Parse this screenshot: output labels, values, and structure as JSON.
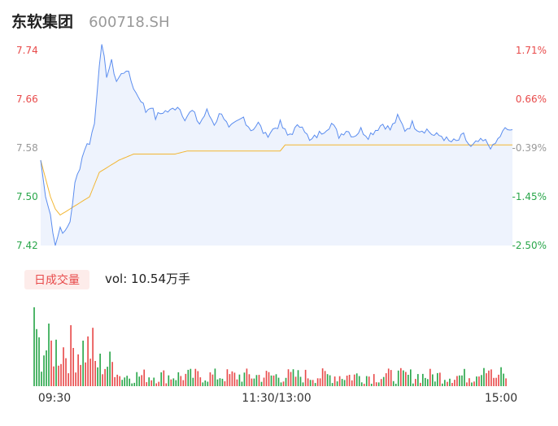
{
  "header": {
    "name": "东软集团",
    "code": "600718.SH"
  },
  "volume_panel": {
    "badge": "日成交量",
    "label": "vol: 10.54万手"
  },
  "colors": {
    "price_line": "#5b8def",
    "avg_line": "#f2b632",
    "up": "#e84a4a",
    "down": "#29a64a",
    "area": "#eef3fd"
  },
  "chart_data": {
    "type": "line",
    "price_axis": {
      "labels": [
        "7.74",
        "7.66",
        "7.58",
        "7.50",
        "7.42"
      ],
      "min": 7.42,
      "max": 7.74
    },
    "pct_axis": {
      "labels": [
        "1.71%",
        "0.66%",
        "-0.39%",
        "-1.45%",
        "-2.50%"
      ]
    },
    "time_labels": [
      "09:30",
      "11:30/13:00",
      "15:00"
    ],
    "price_series_anchors": [
      [
        0,
        7.56
      ],
      [
        2,
        7.5
      ],
      [
        4,
        7.47
      ],
      [
        6,
        7.42
      ],
      [
        8,
        7.45
      ],
      [
        10,
        7.44
      ],
      [
        12,
        7.46
      ],
      [
        14,
        7.52
      ],
      [
        16,
        7.55
      ],
      [
        18,
        7.58
      ],
      [
        20,
        7.59
      ],
      [
        22,
        7.62
      ],
      [
        24,
        7.72
      ],
      [
        25,
        7.75
      ],
      [
        27,
        7.7
      ],
      [
        29,
        7.72
      ],
      [
        31,
        7.69
      ],
      [
        33,
        7.7
      ],
      [
        35,
        7.71
      ],
      [
        37,
        7.69
      ],
      [
        39,
        7.67
      ],
      [
        41,
        7.66
      ],
      [
        43,
        7.64
      ],
      [
        45,
        7.65
      ],
      [
        47,
        7.63
      ],
      [
        50,
        7.64
      ],
      [
        53,
        7.64
      ],
      [
        56,
        7.65
      ],
      [
        59,
        7.63
      ],
      [
        62,
        7.64
      ],
      [
        65,
        7.62
      ],
      [
        68,
        7.64
      ],
      [
        71,
        7.62
      ],
      [
        74,
        7.64
      ],
      [
        77,
        7.61
      ],
      [
        80,
        7.62
      ],
      [
        83,
        7.63
      ],
      [
        86,
        7.61
      ],
      [
        89,
        7.62
      ],
      [
        92,
        7.6
      ],
      [
        95,
        7.61
      ],
      [
        98,
        7.62
      ],
      [
        101,
        7.6
      ],
      [
        104,
        7.61
      ],
      [
        107,
        7.62
      ],
      [
        110,
        7.59
      ],
      [
        113,
        7.6
      ],
      [
        116,
        7.61
      ],
      [
        119,
        7.62
      ],
      [
        122,
        7.6
      ],
      [
        125,
        7.61
      ],
      [
        128,
        7.6
      ],
      [
        131,
        7.61
      ],
      [
        134,
        7.6
      ],
      [
        137,
        7.61
      ],
      [
        140,
        7.62
      ],
      [
        143,
        7.61
      ],
      [
        146,
        7.63
      ],
      [
        149,
        7.61
      ],
      [
        152,
        7.62
      ],
      [
        155,
        7.61
      ],
      [
        158,
        7.61
      ],
      [
        161,
        7.6
      ],
      [
        164,
        7.6
      ],
      [
        167,
        7.59
      ],
      [
        170,
        7.59
      ],
      [
        173,
        7.6
      ],
      [
        176,
        7.58
      ],
      [
        179,
        7.59
      ],
      [
        182,
        7.59
      ],
      [
        185,
        7.58
      ],
      [
        188,
        7.6
      ],
      [
        190,
        7.61
      ],
      [
        193,
        7.61
      ]
    ],
    "avg_series_anchors": [
      [
        0,
        7.56
      ],
      [
        2,
        7.53
      ],
      [
        4,
        7.5
      ],
      [
        6,
        7.48
      ],
      [
        8,
        7.47
      ],
      [
        12,
        7.48
      ],
      [
        16,
        7.49
      ],
      [
        20,
        7.5
      ],
      [
        22,
        7.52
      ],
      [
        24,
        7.54
      ],
      [
        28,
        7.55
      ],
      [
        32,
        7.56
      ],
      [
        38,
        7.57
      ],
      [
        55,
        7.57
      ],
      [
        60,
        7.575
      ],
      [
        98,
        7.575
      ],
      [
        100,
        7.585
      ],
      [
        193,
        7.585
      ]
    ]
  }
}
